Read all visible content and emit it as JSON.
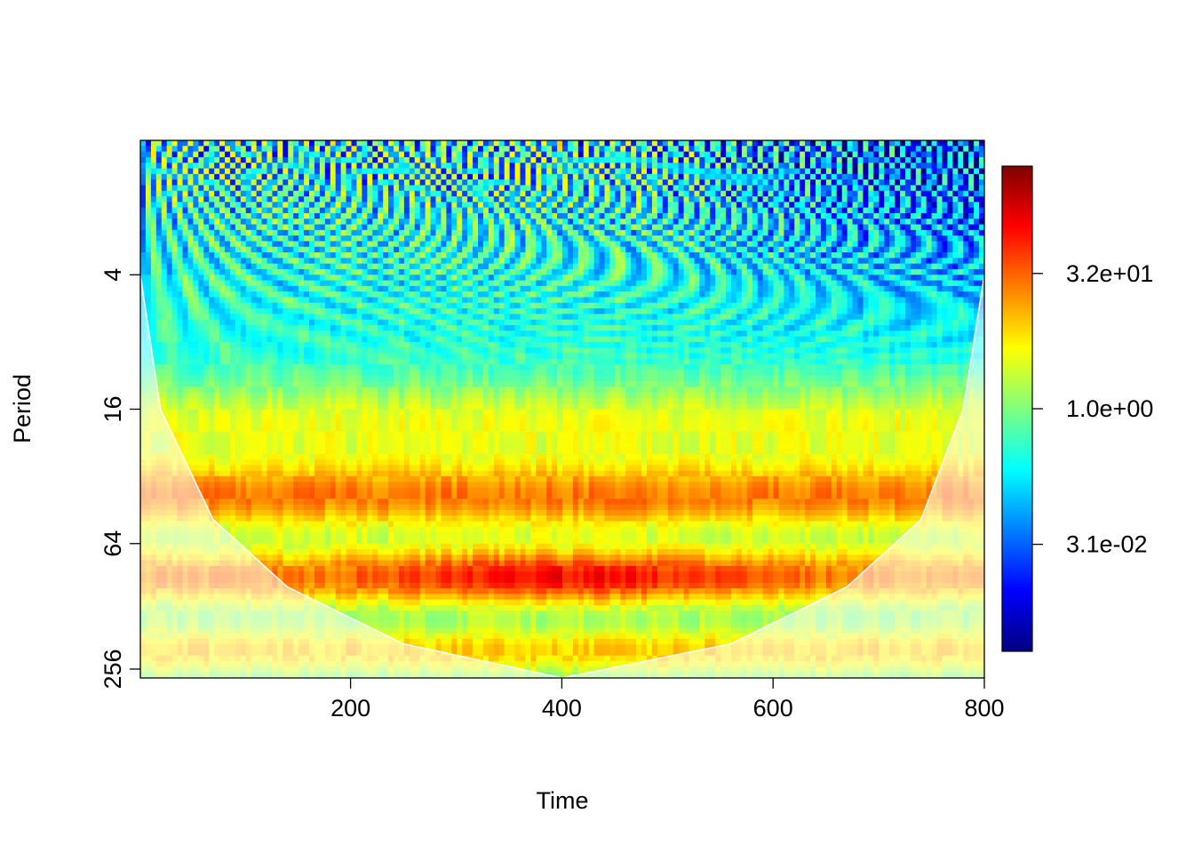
{
  "chart_data": {
    "type": "heatmap",
    "subtype": "wavelet-power-spectrum",
    "title": "",
    "xlabel": "Time",
    "ylabel": "Period",
    "x_ticks": [
      200,
      400,
      600,
      800
    ],
    "x_tick_labels": [
      "200",
      "400",
      "600",
      "800"
    ],
    "xlim": [
      1,
      800
    ],
    "y_scale": "log2",
    "y_reversed": true,
    "y_ticks": [
      4,
      16,
      64,
      256
    ],
    "y_tick_labels": [
      "4",
      "16",
      "64",
      "256"
    ],
    "ylim": [
      1,
      256
    ],
    "colorbar": {
      "scale": "log",
      "ticks": [
        32,
        1,
        0.031
      ],
      "tick_labels": [
        "3.2e+01",
        "1.0e+00",
        "3.1e-02"
      ],
      "range": [
        0.002,
        500
      ],
      "palette": [
        "#00007F",
        "#0000FF",
        "#007FFF",
        "#00FFFF",
        "#7FFF7F",
        "#FFFF00",
        "#FF7F00",
        "#FF0000",
        "#7F0000"
      ]
    },
    "cone_of_influence": {
      "color": "#ffffff",
      "points": [
        {
          "time": 1,
          "period": 4
        },
        {
          "time": 20,
          "period": 16
        },
        {
          "time": 70,
          "period": 50
        },
        {
          "time": 140,
          "period": 100
        },
        {
          "time": 250,
          "period": 180
        },
        {
          "time": 400,
          "period": 256
        },
        {
          "time": 560,
          "period": 180
        },
        {
          "time": 670,
          "period": 100
        },
        {
          "time": 740,
          "period": 50
        },
        {
          "time": 780,
          "period": 16
        },
        {
          "time": 800,
          "period": 4
        }
      ]
    },
    "power_ridges": [
      {
        "period": 1.5,
        "label": "high-frequency region, mixed yellow/cyan/blue"
      },
      {
        "period": 40,
        "label": "red band"
      },
      {
        "period": 90,
        "label": "dark red band, strongest around time 400"
      },
      {
        "period": 200,
        "label": "orange band"
      }
    ]
  }
}
